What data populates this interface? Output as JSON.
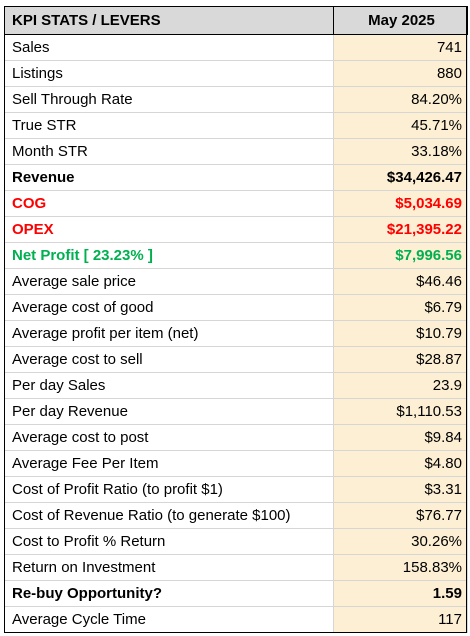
{
  "table": {
    "header": {
      "label": "KPI STATS / LEVERS",
      "period": "May 2025"
    },
    "rows": [
      {
        "label": "Sales",
        "value": "741",
        "style": "normal"
      },
      {
        "label": "Listings",
        "value": "880",
        "style": "normal"
      },
      {
        "label": "Sell Through Rate",
        "value": "84.20%",
        "style": "normal"
      },
      {
        "label": "True STR",
        "value": "45.71%",
        "style": "normal"
      },
      {
        "label": "Month STR",
        "value": "33.18%",
        "style": "normal"
      },
      {
        "label": "Revenue",
        "value": "$34,426.47",
        "style": "bold"
      },
      {
        "label": "COG",
        "value": "$5,034.69",
        "style": "red"
      },
      {
        "label": "OPEX",
        "value": "$21,395.22",
        "style": "red"
      },
      {
        "label": "Net Profit [ 23.23% ]",
        "value": "$7,996.56",
        "style": "green"
      },
      {
        "label": "Average sale price",
        "value": "$46.46",
        "style": "normal"
      },
      {
        "label": "Average cost of good",
        "value": "$6.79",
        "style": "normal"
      },
      {
        "label": "Average profit per item (net)",
        "value": "$10.79",
        "style": "normal"
      },
      {
        "label": "Average cost to sell",
        "value": "$28.87",
        "style": "normal"
      },
      {
        "label": "Per day Sales",
        "value": "23.9",
        "style": "normal"
      },
      {
        "label": "Per day Revenue",
        "value": "$1,110.53",
        "style": "normal"
      },
      {
        "label": "Average cost to post",
        "value": "$9.84",
        "style": "normal"
      },
      {
        "label": "Average Fee Per Item",
        "value": "$4.80",
        "style": "normal"
      },
      {
        "label": "Cost of Profit Ratio (to profit $1)",
        "value": "$3.31",
        "style": "normal"
      },
      {
        "label": "Cost of Revenue Ratio (to generate $100)",
        "value": "$76.77",
        "style": "normal"
      },
      {
        "label": "Cost to Profit % Return",
        "value": "30.26%",
        "style": "normal"
      },
      {
        "label": "Return on Investment",
        "value": "158.83%",
        "style": "normal"
      },
      {
        "label": "Re-buy Opportunity?",
        "value": "1.59",
        "style": "bold"
      },
      {
        "label": "Average Cycle Time",
        "value": "117",
        "style": "normal"
      }
    ]
  },
  "colors": {
    "header_bg": "#d9d9d9",
    "value_bg": "#fdefd3",
    "negative_red": "#ff0000",
    "profit_green": "#00b050"
  }
}
